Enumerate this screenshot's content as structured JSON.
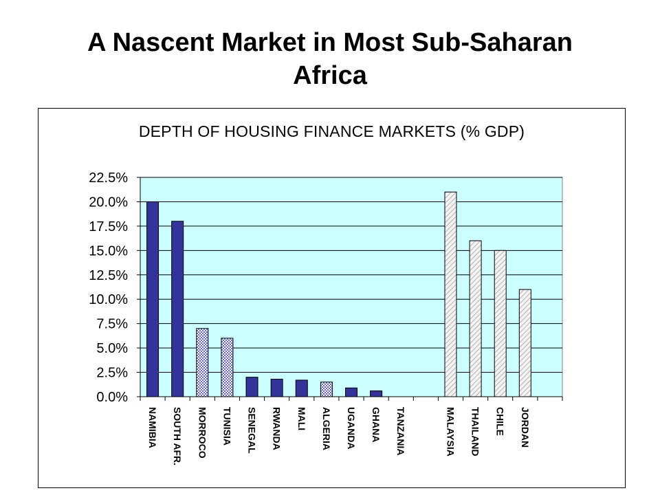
{
  "slide": {
    "title_line1": "A Nascent Market in Most Sub-Saharan",
    "title_line2": "Africa"
  },
  "colors": {
    "plot_background": "#ccffff",
    "ssa_solid": "#333399",
    "north_africa_hatched": "#6666cc",
    "comparator_hatched": "#d9d9d9"
  },
  "chart_data": {
    "type": "bar",
    "title": "DEPTH OF HOUSING FINANCE MARKETS (% GDP)",
    "xlabel": "",
    "ylabel": "",
    "ylim": [
      0,
      22.5
    ],
    "yticks": [
      "0.0%",
      "2.5%",
      "5.0%",
      "7.5%",
      "10.0%",
      "12.5%",
      "15.0%",
      "17.5%",
      "20.0%",
      "22.5%"
    ],
    "grid": true,
    "legend": "none",
    "categories": [
      "NAMIBIA",
      "SOUTH AFR.",
      "MORROCO",
      "TUNISIA",
      "SENEGAL",
      "RWANDA",
      "MALI",
      "ALGERIA",
      "UGANDA",
      "GHANA",
      "TANZANIA",
      "",
      "MALAYSIA",
      "THAILAND",
      "CHILE",
      "JORDAN"
    ],
    "values": [
      20.0,
      18.0,
      7.0,
      6.0,
      2.0,
      1.8,
      1.7,
      1.5,
      0.9,
      0.6,
      0.0,
      null,
      21.0,
      16.0,
      15.0,
      11.0
    ],
    "styles": [
      "solid",
      "solid",
      "hatched-blue",
      "hatched-blue",
      "solid",
      "solid",
      "solid",
      "hatched-blue",
      "solid",
      "solid",
      "solid",
      "none",
      "hatched-gray",
      "hatched-gray",
      "hatched-gray",
      "hatched-gray"
    ]
  }
}
